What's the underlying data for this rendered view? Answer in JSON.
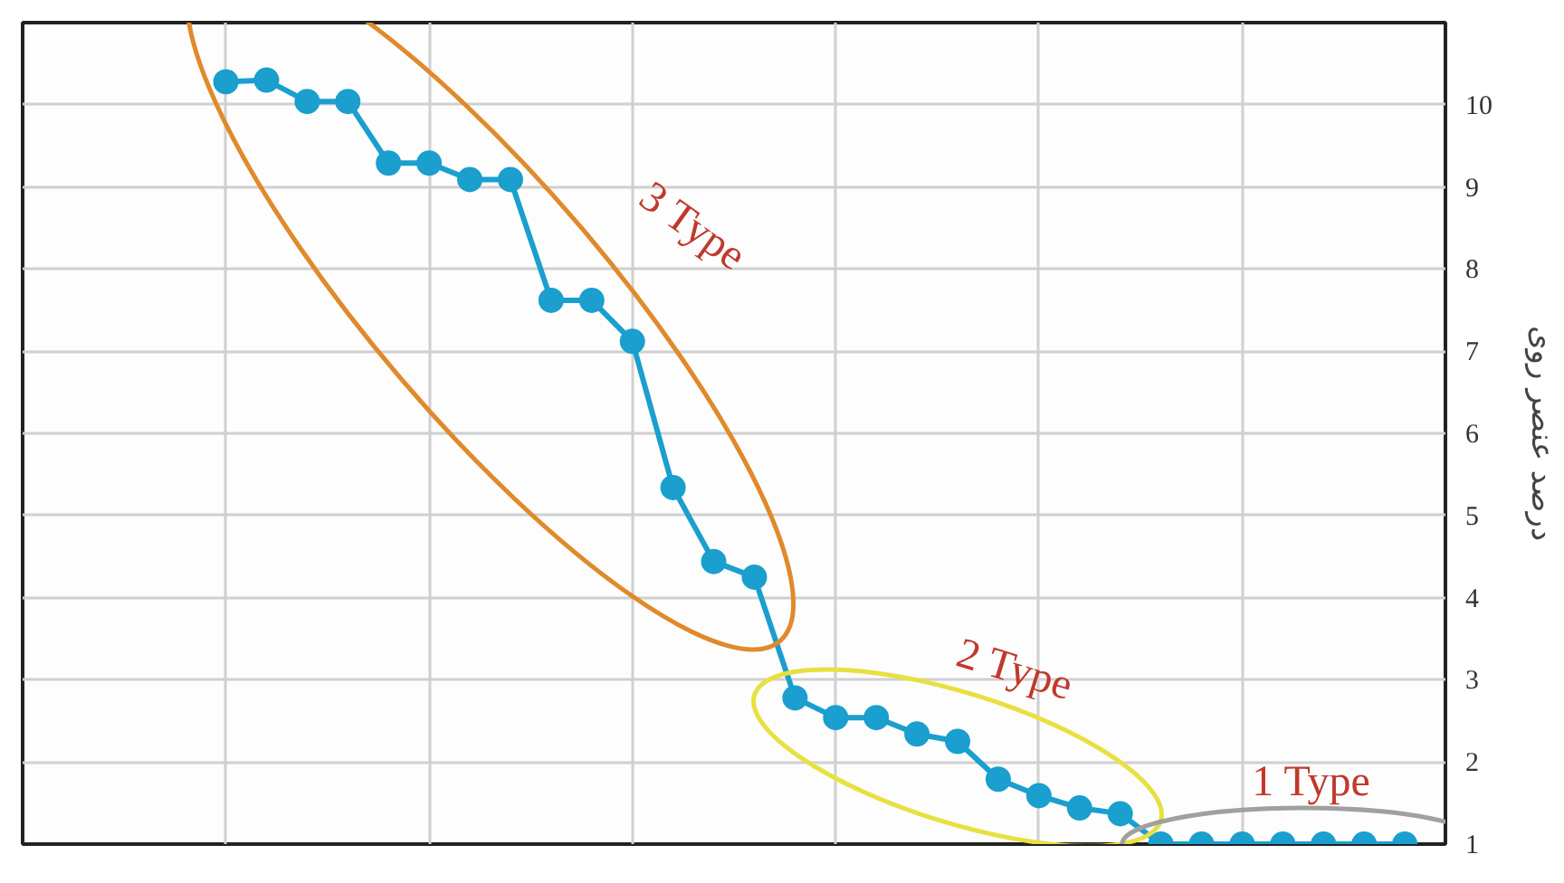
{
  "chart_data": {
    "type": "line",
    "ylabel": "درصد عنصر روی",
    "categories": [
      null,
      null,
      null,
      null,
      null,
      null,
      null,
      null,
      null,
      null,
      null,
      null,
      null,
      null,
      null,
      null,
      null,
      null,
      null,
      null,
      null,
      null,
      null,
      null,
      null,
      null,
      null,
      null,
      null,
      null
    ],
    "series": [
      {
        "color": "#1a9fcf",
        "values": [
          10.28,
          10.3,
          10.04,
          10.04,
          9.29,
          9.29,
          9.09,
          9.09,
          7.62,
          7.62,
          7.12,
          5.34,
          4.44,
          4.25,
          2.78,
          2.54,
          2.54,
          2.34,
          2.25,
          1.79,
          1.59,
          1.44,
          1.37,
          1,
          1,
          1,
          1,
          1,
          1,
          1
        ]
      }
    ],
    "ylim": [
      1,
      11
    ],
    "yticks": [
      1,
      2,
      3,
      4,
      5,
      6,
      7,
      8,
      9,
      10
    ],
    "grid": true,
    "marker": "circle",
    "line_style": "solid",
    "annotations": [
      "3 Type",
      "2 Type",
      "1 Type"
    ]
  }
}
